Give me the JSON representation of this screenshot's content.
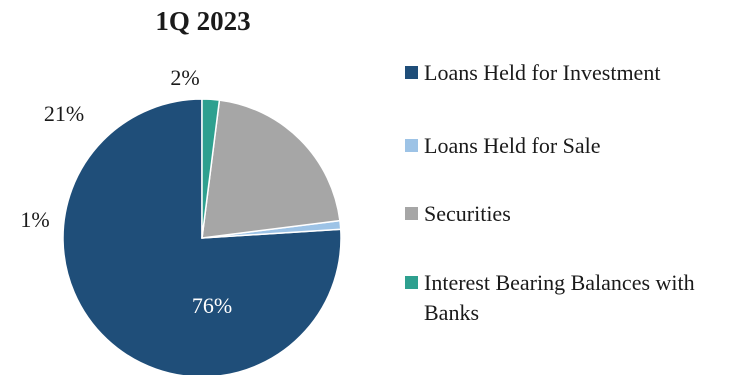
{
  "chart_data": {
    "type": "pie",
    "title": "1Q 2023",
    "slices": [
      {
        "label": "Loans Held for Investment",
        "value": 76,
        "display": "76%",
        "color": "#1f4e79"
      },
      {
        "label": "Loans Held for Sale",
        "value": 1,
        "display": "1%",
        "color": "#9dc3e6"
      },
      {
        "label": "Securities",
        "value": 21,
        "display": "21%",
        "color": "#a6a6a6"
      },
      {
        "label": "Interest Bearing Balances with Banks",
        "value": 2,
        "display": "2%",
        "color": "#2ea08f"
      }
    ],
    "legend_position": "right"
  }
}
